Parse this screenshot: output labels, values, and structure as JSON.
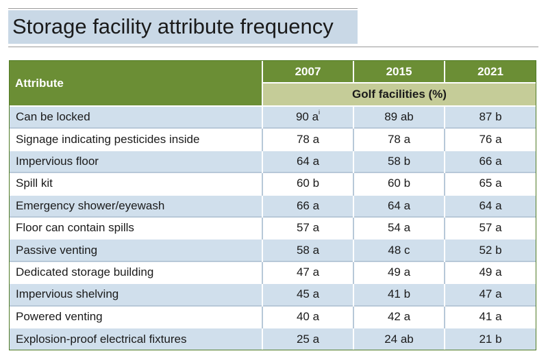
{
  "title": "Storage facility attribute frequency",
  "colors": {
    "header_green": "#6b8e35",
    "subheader_olive": "#c5cc98",
    "row_blue": "#d0dfec",
    "title_band": "#c9d8e6"
  },
  "table": {
    "attribute_header": "Attribute",
    "years": [
      "2007",
      "2015",
      "2021"
    ],
    "subheader": "Golf facilities (%)",
    "footnote_marker": "i",
    "rows": [
      {
        "attribute": "Can be locked",
        "v2007": "90 a",
        "v2015": "89 ab",
        "v2021": "87 b"
      },
      {
        "attribute": "Signage indicating pesticides inside",
        "v2007": "78 a",
        "v2015": "78 a",
        "v2021": "76 a"
      },
      {
        "attribute": "Impervious floor",
        "v2007": "64 a",
        "v2015": "58 b",
        "v2021": "66 a"
      },
      {
        "attribute": "Spill kit",
        "v2007": "60 b",
        "v2015": "60 b",
        "v2021": "65 a"
      },
      {
        "attribute": "Emergency shower/eyewash",
        "v2007": "66 a",
        "v2015": "64 a",
        "v2021": "64 a"
      },
      {
        "attribute": "Floor can contain spills",
        "v2007": "57 a",
        "v2015": "54 a",
        "v2021": "57 a"
      },
      {
        "attribute": "Passive venting",
        "v2007": "58 a",
        "v2015": "48 c",
        "v2021": "52 b"
      },
      {
        "attribute": "Dedicated storage building",
        "v2007": "47 a",
        "v2015": "49 a",
        "v2021": "49 a"
      },
      {
        "attribute": "Impervious shelving",
        "v2007": "45 a",
        "v2015": "41 b",
        "v2021": "47 a"
      },
      {
        "attribute": "Powered venting",
        "v2007": "40 a",
        "v2015": "42 a",
        "v2021": "41 a"
      },
      {
        "attribute": "Explosion-proof electrical fixtures",
        "v2007": "25 a",
        "v2015": "24 ab",
        "v2021": "21 b"
      }
    ]
  }
}
